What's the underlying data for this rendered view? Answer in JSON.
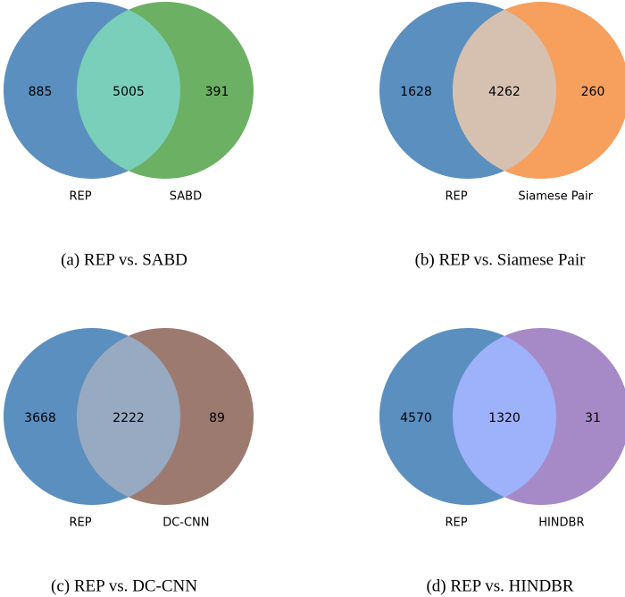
{
  "panels": [
    {
      "caption": "(a) REP vs. SABD",
      "left": {
        "label": "REP",
        "count": 885,
        "color": "#5a8fc0"
      },
      "right": {
        "label": "SABD",
        "count": 391,
        "color": "#6cb063"
      },
      "both": {
        "count": 5005,
        "color": "#7acfba"
      }
    },
    {
      "caption": "(b) REP vs. Siamese Pair",
      "left": {
        "label": "REP",
        "count": 1628,
        "color": "#5a8fc0"
      },
      "right": {
        "label": "Siamese Pair",
        "count": 260,
        "color": "#f79f5c"
      },
      "both": {
        "count": 4262,
        "color": "#d6c1b1"
      }
    },
    {
      "caption": "(c) REP vs. DC-CNN",
      "left": {
        "label": "REP",
        "count": 3668,
        "color": "#5a8fc0"
      },
      "right": {
        "label": "DC-CNN",
        "count": 89,
        "color": "#9d7a70"
      },
      "both": {
        "count": 2222,
        "color": "#98a9c2"
      }
    },
    {
      "caption": "(d) REP vs. HINDBR",
      "left": {
        "label": "REP",
        "count": 4570,
        "color": "#5a8fc0"
      },
      "right": {
        "label": "HINDBR",
        "count": 31,
        "color": "#a68ac7"
      },
      "both": {
        "count": 1320,
        "color": "#9eb1fb"
      }
    }
  ]
}
